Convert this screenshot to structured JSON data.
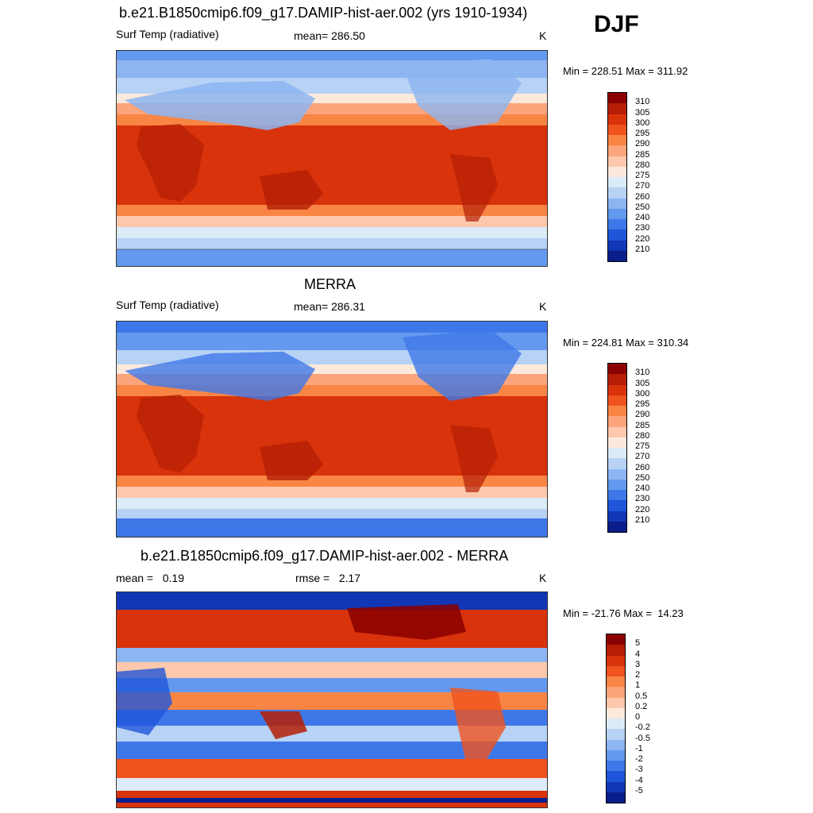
{
  "season": "DJF",
  "panels": [
    {
      "title": "b.e21.B1850cmip6.f09_g17.DAMIP-hist-aer.002 (yrs 1910-1934)",
      "left_label": "Surf Temp (radiative)",
      "center_label": "mean= 286.50",
      "units": "K",
      "minmax": "Min = 228.51 Max = 311.92",
      "colorbar": {
        "colors": [
          "#8b0000",
          "#b51e05",
          "#d8330a",
          "#f0531d",
          "#f98545",
          "#fca47b",
          "#fdc8ac",
          "#fde9dc",
          "#dcebf8",
          "#b7d2f4",
          "#8cb5f1",
          "#6399ee",
          "#3e78e8",
          "#1f55d9",
          "#1137b6",
          "#0a1e8a"
        ],
        "labels": [
          "310",
          "305",
          "300",
          "295",
          "290",
          "285",
          "280",
          "275",
          "270",
          "260",
          "250",
          "240",
          "230",
          "220",
          "210"
        ]
      }
    },
    {
      "title": "MERRA",
      "left_label": "Surf Temp (radiative)",
      "center_label": "mean= 286.31",
      "units": "K",
      "minmax": "Min = 224.81 Max = 310.34",
      "colorbar": {
        "colors": [
          "#8b0000",
          "#b51e05",
          "#d8330a",
          "#f0531d",
          "#f98545",
          "#fca47b",
          "#fdc8ac",
          "#fde9dc",
          "#dcebf8",
          "#b7d2f4",
          "#8cb5f1",
          "#6399ee",
          "#3e78e8",
          "#1f55d9",
          "#1137b6",
          "#0a1e8a"
        ],
        "labels": [
          "310",
          "305",
          "300",
          "295",
          "290",
          "285",
          "280",
          "275",
          "270",
          "260",
          "250",
          "240",
          "230",
          "220",
          "210"
        ]
      }
    },
    {
      "title": "b.e21.B1850cmip6.f09_g17.DAMIP-hist-aer.002 - MERRA",
      "left_label": "mean =   0.19",
      "center_label": "rmse =   2.17",
      "units": "K",
      "minmax": "Min = -21.76 Max =  14.23",
      "colorbar": {
        "colors": [
          "#8b0000",
          "#b51e05",
          "#d8330a",
          "#f0531d",
          "#f98545",
          "#fca47b",
          "#fdc8ac",
          "#fde9dc",
          "#dcebf8",
          "#b7d2f4",
          "#8cb5f1",
          "#6399ee",
          "#3e78e8",
          "#1f55d9",
          "#1137b6",
          "#0a1e8a"
        ],
        "labels": [
          "5",
          "4",
          "3",
          "2",
          "1",
          "0.5",
          "0.2",
          "0",
          "-0.2",
          "-0.5",
          "-1",
          "-2",
          "-3",
          "-4",
          "-5"
        ]
      }
    }
  ]
}
